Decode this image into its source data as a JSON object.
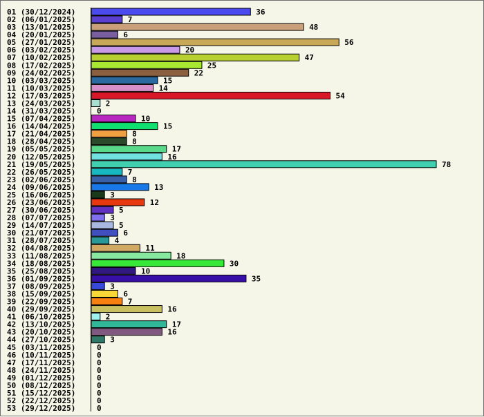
{
  "chart_data": {
    "type": "bar",
    "orientation": "horizontal",
    "title": "",
    "xlabel": "",
    "ylabel": "",
    "grid": false,
    "xlim": [
      0,
      78
    ],
    "categories": [
      "01 (30/12/2024)",
      "02 (06/01/2025)",
      "03 (13/01/2025)",
      "04 (20/01/2025)",
      "05 (27/01/2025)",
      "06 (03/02/2025)",
      "07 (10/02/2025)",
      "08 (17/02/2025)",
      "09 (24/02/2025)",
      "10 (03/03/2025)",
      "11 (10/03/2025)",
      "12 (17/03/2025)",
      "13 (24/03/2025)",
      "14 (31/03/2025)",
      "15 (07/04/2025)",
      "16 (14/04/2025)",
      "17 (21/04/2025)",
      "18 (28/04/2025)",
      "19 (05/05/2025)",
      "20 (12/05/2025)",
      "21 (19/05/2025)",
      "22 (26/05/2025)",
      "23 (02/06/2025)",
      "24 (09/06/2025)",
      "25 (16/06/2025)",
      "26 (23/06/2025)",
      "27 (30/06/2025)",
      "28 (07/07/2025)",
      "29 (14/07/2025)",
      "30 (21/07/2025)",
      "31 (28/07/2025)",
      "32 (04/08/2025)",
      "33 (11/08/2025)",
      "34 (18/08/2025)",
      "35 (25/08/2025)",
      "36 (01/09/2025)",
      "37 (08/09/2025)",
      "38 (15/09/2025)",
      "39 (22/09/2025)",
      "40 (29/09/2025)",
      "41 (06/10/2025)",
      "42 (13/10/2025)",
      "43 (20/10/2025)",
      "44 (27/10/2025)",
      "45 (03/11/2025)",
      "46 (10/11/2025)",
      "47 (17/11/2025)",
      "48 (24/11/2025)",
      "49 (01/12/2025)",
      "50 (08/12/2025)",
      "51 (15/12/2025)",
      "52 (22/12/2025)",
      "53 (29/12/2025)"
    ],
    "values": [
      36,
      7,
      48,
      6,
      56,
      20,
      47,
      25,
      22,
      15,
      14,
      54,
      2,
      0,
      10,
      15,
      8,
      8,
      17,
      16,
      78,
      7,
      8,
      13,
      3,
      12,
      5,
      3,
      5,
      6,
      4,
      11,
      18,
      30,
      10,
      35,
      3,
      6,
      7,
      16,
      2,
      17,
      16,
      3,
      0,
      0,
      0,
      0,
      0,
      0,
      0,
      0,
      0
    ],
    "colors": [
      "#4a4aee",
      "#5a3fd0",
      "#c9a07a",
      "#7a5fa0",
      "#c8a858",
      "#c89ae8",
      "#b8d030",
      "#a8e830",
      "#8a6040",
      "#2a6aa0",
      "#d890c8",
      "#d81828",
      "#a8e0d0",
      "#ffffff",
      "#b828c0",
      "#10e070",
      "#f0a040",
      "#2a4a2a",
      "#58d888",
      "#70e0e0",
      "#40d0b0",
      "#18b8c0",
      "#3860a8",
      "#1878e8",
      "#1a3a1a",
      "#e83810",
      "#6030c0",
      "#8070f0",
      "#a8b8e0",
      "#4050c0",
      "#289898",
      "#d0a860",
      "#88e8a0",
      "#38e838",
      "#301880",
      "#3810a8",
      "#3848d8",
      "#f8d838",
      "#f88010",
      "#c8c060",
      "#a0f0f0",
      "#30b898",
      "#805880",
      "#307868",
      "#ffffff",
      "#ffffff",
      "#ffffff",
      "#ffffff",
      "#ffffff",
      "#ffffff",
      "#ffffff",
      "#ffffff",
      "#ffffff"
    ]
  }
}
